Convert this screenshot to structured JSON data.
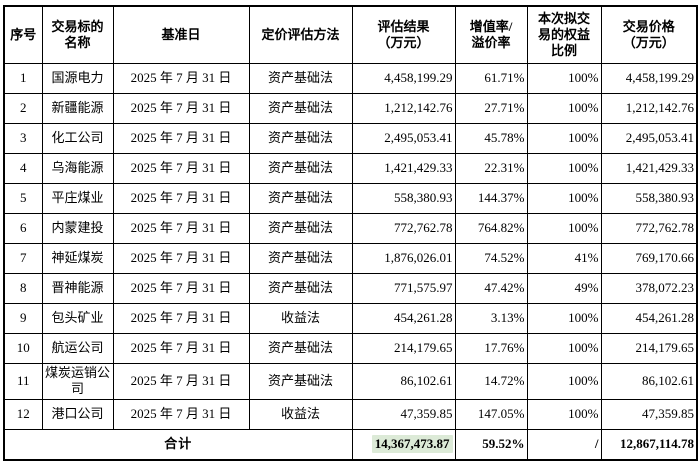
{
  "colors": {
    "background": "#ffffff",
    "border": "#000000",
    "text": "#000000",
    "total_highlight": "#dcead7"
  },
  "table": {
    "headers": [
      "序号",
      "交易标的\n名称",
      "基准日",
      "定价评估方法",
      "评估结果\n（万元）",
      "增值率/\n溢价率",
      "本次拟交\n易的权益\n比例",
      "交易价格\n（万元）"
    ],
    "rows": [
      {
        "no": "1",
        "name": "国源电力",
        "date": "2025 年 7 月 31 日",
        "method": "资产基础法",
        "result": "4,458,199.29",
        "rate": "61.71%",
        "equity": "100%",
        "price": "4,458,199.29"
      },
      {
        "no": "2",
        "name": "新疆能源",
        "date": "2025 年 7 月 31 日",
        "method": "资产基础法",
        "result": "1,212,142.76",
        "rate": "27.71%",
        "equity": "100%",
        "price": "1,212,142.76"
      },
      {
        "no": "3",
        "name": "化工公司",
        "date": "2025 年 7 月 31 日",
        "method": "资产基础法",
        "result": "2,495,053.41",
        "rate": "45.78%",
        "equity": "100%",
        "price": "2,495,053.41"
      },
      {
        "no": "4",
        "name": "乌海能源",
        "date": "2025 年 7 月 31 日",
        "method": "资产基础法",
        "result": "1,421,429.33",
        "rate": "22.31%",
        "equity": "100%",
        "price": "1,421,429.33"
      },
      {
        "no": "5",
        "name": "平庄煤业",
        "date": "2025 年 7 月 31 日",
        "method": "资产基础法",
        "result": "558,380.93",
        "rate": "144.37%",
        "equity": "100%",
        "price": "558,380.93"
      },
      {
        "no": "6",
        "name": "内蒙建投",
        "date": "2025 年 7 月 31 日",
        "method": "资产基础法",
        "result": "772,762.78",
        "rate": "764.82%",
        "equity": "100%",
        "price": "772,762.78"
      },
      {
        "no": "7",
        "name": "神延煤炭",
        "date": "2025 年 7 月 31 日",
        "method": "资产基础法",
        "result": "1,876,026.01",
        "rate": "74.52%",
        "equity": "41%",
        "price": "769,170.66"
      },
      {
        "no": "8",
        "name": "晋神能源",
        "date": "2025 年 7 月 31 日",
        "method": "资产基础法",
        "result": "771,575.97",
        "rate": "47.42%",
        "equity": "49%",
        "price": "378,072.23"
      },
      {
        "no": "9",
        "name": "包头矿业",
        "date": "2025 年 7 月 31 日",
        "method": "收益法",
        "result": "454,261.28",
        "rate": "3.13%",
        "equity": "100%",
        "price": "454,261.28"
      },
      {
        "no": "10",
        "name": "航运公司",
        "date": "2025 年 7 月 31 日",
        "method": "资产基础法",
        "result": "214,179.65",
        "rate": "17.76%",
        "equity": "100%",
        "price": "214,179.65"
      },
      {
        "no": "11",
        "name": "煤炭运销公司",
        "date": "2025 年 7 月 31 日",
        "method": "资产基础法",
        "result": "86,102.61",
        "rate": "14.72%",
        "equity": "100%",
        "price": "86,102.61"
      },
      {
        "no": "12",
        "name": "港口公司",
        "date": "2025 年 7 月 31 日",
        "method": "收益法",
        "result": "47,359.85",
        "rate": "147.05%",
        "equity": "100%",
        "price": "47,359.85"
      }
    ],
    "total": {
      "label": "合计",
      "result": "14,367,473.87",
      "rate": "59.52%",
      "equity": "/",
      "price": "12,867,114.78"
    }
  }
}
